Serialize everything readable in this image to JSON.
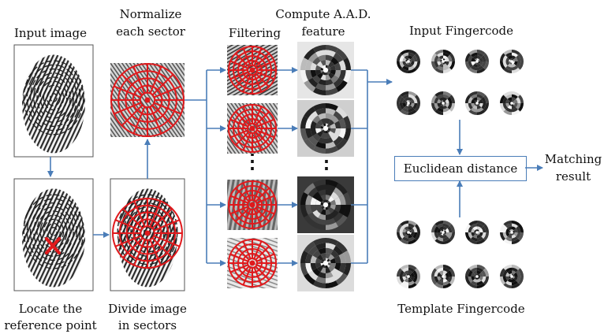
{
  "labels": {
    "input_image": "Input image",
    "normalize_line1": "Normalize",
    "normalize_line2": "each sector",
    "filtering": "Filtering",
    "compute_line1": "Compute A.A.D.",
    "compute_line2": "feature",
    "input_fingercode": "Input Fingercode",
    "euclidean_distance": "Euclidean distance",
    "matching_line1": "Matching",
    "matching_line2": "result",
    "locate_line1": "Locate the",
    "locate_line2": "reference point",
    "divide_line1": "Divide image",
    "divide_line2": "in sectors",
    "template_fingercode": "Template Fingercode",
    "vertical_dots_1": "⋮",
    "vertical_dots_2": "⋮"
  },
  "icons": {
    "fingerprint": "fingerprint-image",
    "reference_marker": "red-x-marker",
    "sector_grid": "red-circular-sector-grid",
    "feature_disc": "grayscale-sector-disc"
  },
  "colors": {
    "arrow": "#4a7db8",
    "grid": "#e0191c",
    "marker": "#e0191c"
  }
}
